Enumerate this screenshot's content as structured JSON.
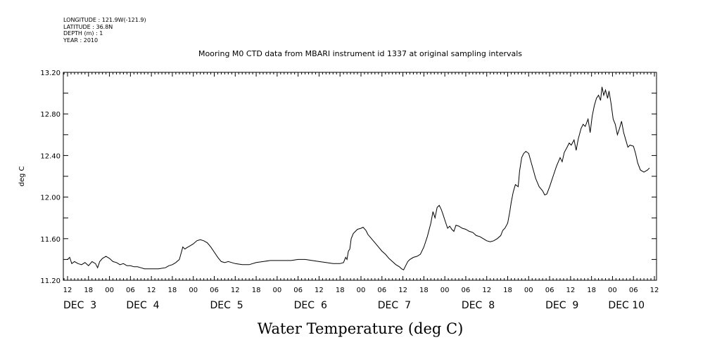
{
  "header": {
    "meta_lines": [
      "LONGITUDE : 121.9W(-121.9)",
      "LATITUDE : 36.8N",
      "DEPTH (m) : 1",
      "YEAR : 2010"
    ]
  },
  "chart_data": {
    "type": "line",
    "title": "Mooring M0 CTD data from MBARI instrument id 1337 at original sampling intervals",
    "xlabel": "Water Temperature (deg C)",
    "ylabel": "deg C",
    "ylim": [
      11.2,
      13.2
    ],
    "yticks": [
      11.2,
      11.6,
      12.0,
      12.4,
      12.8,
      13.2
    ],
    "ytick_labels": [
      "11.20",
      "11.60",
      "12.00",
      "12.40",
      "12.80",
      "13.20"
    ],
    "xlim_hours": [
      0,
      168
    ],
    "xticks": [
      {
        "hour": 0,
        "label": "12"
      },
      {
        "hour": 6,
        "label": "18"
      },
      {
        "hour": 12,
        "label": "00"
      },
      {
        "hour": 18,
        "label": "06"
      },
      {
        "hour": 24,
        "label": "12"
      },
      {
        "hour": 30,
        "label": "18"
      },
      {
        "hour": 36,
        "label": "00"
      },
      {
        "hour": 42,
        "label": "06"
      },
      {
        "hour": 48,
        "label": "12"
      },
      {
        "hour": 54,
        "label": "18"
      },
      {
        "hour": 60,
        "label": "00"
      },
      {
        "hour": 66,
        "label": "06"
      },
      {
        "hour": 72,
        "label": "12"
      },
      {
        "hour": 78,
        "label": "18"
      },
      {
        "hour": 84,
        "label": "00"
      },
      {
        "hour": 90,
        "label": "06"
      },
      {
        "hour": 96,
        "label": "12"
      },
      {
        "hour": 102,
        "label": "18"
      },
      {
        "hour": 108,
        "label": "00"
      },
      {
        "hour": 114,
        "label": "06"
      },
      {
        "hour": 120,
        "label": "12"
      },
      {
        "hour": 126,
        "label": "18"
      },
      {
        "hour": 132,
        "label": "00"
      },
      {
        "hour": 138,
        "label": "06"
      },
      {
        "hour": 144,
        "label": "12"
      },
      {
        "hour": 150,
        "label": "18"
      },
      {
        "hour": 156,
        "label": "00"
      },
      {
        "hour": 162,
        "label": "06"
      },
      {
        "hour": 168,
        "label": "12"
      }
    ],
    "day_labels": [
      {
        "hour": 0,
        "label": "DEC  3"
      },
      {
        "hour": 18,
        "label": "DEC  4"
      },
      {
        "hour": 42,
        "label": "DEC  5"
      },
      {
        "hour": 66,
        "label": "DEC  6"
      },
      {
        "hour": 90,
        "label": "DEC  7"
      },
      {
        "hour": 114,
        "label": "DEC  8"
      },
      {
        "hour": 138,
        "label": "DEC  9"
      },
      {
        "hour": 156,
        "label": "DEC 10"
      }
    ],
    "grid": false,
    "series": [
      {
        "points": [
          [
            0,
            11.4
          ],
          [
            0.6,
            11.42
          ],
          [
            1.2,
            11.36
          ],
          [
            2,
            11.38
          ],
          [
            3,
            11.36
          ],
          [
            4,
            11.35
          ],
          [
            5,
            11.37
          ],
          [
            6,
            11.34
          ],
          [
            7,
            11.38
          ],
          [
            8,
            11.36
          ],
          [
            8.6,
            11.32
          ],
          [
            9.2,
            11.38
          ],
          [
            10,
            11.41
          ],
          [
            11,
            11.43
          ],
          [
            12,
            11.41
          ],
          [
            13,
            11.38
          ],
          [
            14,
            11.37
          ],
          [
            15,
            11.35
          ],
          [
            16,
            11.36
          ],
          [
            17,
            11.34
          ],
          [
            18,
            11.34
          ],
          [
            19,
            11.33
          ],
          [
            20,
            11.33
          ],
          [
            21,
            11.32
          ],
          [
            22,
            11.31
          ],
          [
            23,
            11.31
          ],
          [
            24,
            11.31
          ],
          [
            26,
            11.31
          ],
          [
            28,
            11.32
          ],
          [
            29,
            11.34
          ],
          [
            30,
            11.35
          ],
          [
            31,
            11.37
          ],
          [
            32,
            11.4
          ],
          [
            32.6,
            11.47
          ],
          [
            33,
            11.52
          ],
          [
            33.6,
            11.5
          ],
          [
            34,
            11.51
          ],
          [
            35,
            11.53
          ],
          [
            36,
            11.55
          ],
          [
            37,
            11.58
          ],
          [
            38,
            11.59
          ],
          [
            39,
            11.58
          ],
          [
            40,
            11.56
          ],
          [
            41,
            11.52
          ],
          [
            42,
            11.47
          ],
          [
            43,
            11.42
          ],
          [
            44,
            11.38
          ],
          [
            45,
            11.37
          ],
          [
            46,
            11.38
          ],
          [
            47,
            11.37
          ],
          [
            48,
            11.36
          ],
          [
            50,
            11.35
          ],
          [
            52,
            11.35
          ],
          [
            54,
            11.37
          ],
          [
            56,
            11.38
          ],
          [
            58,
            11.39
          ],
          [
            60,
            11.39
          ],
          [
            62,
            11.39
          ],
          [
            64,
            11.39
          ],
          [
            66,
            11.4
          ],
          [
            68,
            11.4
          ],
          [
            70,
            11.39
          ],
          [
            72,
            11.38
          ],
          [
            74,
            11.37
          ],
          [
            76,
            11.36
          ],
          [
            78,
            11.36
          ],
          [
            79,
            11.37
          ],
          [
            79.6,
            11.42
          ],
          [
            80,
            11.4
          ],
          [
            80.4,
            11.48
          ],
          [
            80.8,
            11.5
          ],
          [
            81.2,
            11.6
          ],
          [
            81.8,
            11.65
          ],
          [
            82.4,
            11.67
          ],
          [
            83,
            11.69
          ],
          [
            84,
            11.7
          ],
          [
            84.6,
            11.71
          ],
          [
            85.4,
            11.68
          ],
          [
            86,
            11.64
          ],
          [
            87,
            11.6
          ],
          [
            88,
            11.56
          ],
          [
            89,
            11.52
          ],
          [
            90,
            11.48
          ],
          [
            91,
            11.45
          ],
          [
            92,
            11.41
          ],
          [
            93,
            11.38
          ],
          [
            94,
            11.35
          ],
          [
            95,
            11.33
          ],
          [
            95.6,
            11.31
          ],
          [
            96.2,
            11.3
          ],
          [
            96.8,
            11.34
          ],
          [
            97.4,
            11.38
          ],
          [
            98,
            11.4
          ],
          [
            99,
            11.42
          ],
          [
            100,
            11.43
          ],
          [
            101,
            11.45
          ],
          [
            102,
            11.52
          ],
          [
            103,
            11.62
          ],
          [
            104,
            11.75
          ],
          [
            104.6,
            11.86
          ],
          [
            105.2,
            11.8
          ],
          [
            105.8,
            11.9
          ],
          [
            106.4,
            11.92
          ],
          [
            107,
            11.88
          ],
          [
            107.6,
            11.82
          ],
          [
            108.2,
            11.76
          ],
          [
            108.8,
            11.7
          ],
          [
            109.4,
            11.72
          ],
          [
            110,
            11.69
          ],
          [
            110.6,
            11.67
          ],
          [
            111.2,
            11.73
          ],
          [
            112,
            11.72
          ],
          [
            113,
            11.7
          ],
          [
            114,
            11.69
          ],
          [
            115,
            11.67
          ],
          [
            116,
            11.66
          ],
          [
            117,
            11.63
          ],
          [
            118,
            11.62
          ],
          [
            119,
            11.6
          ],
          [
            120,
            11.58
          ],
          [
            121,
            11.57
          ],
          [
            122,
            11.58
          ],
          [
            123,
            11.6
          ],
          [
            124,
            11.63
          ],
          [
            124.6,
            11.68
          ],
          [
            125.2,
            11.7
          ],
          [
            126,
            11.75
          ],
          [
            126.6,
            11.86
          ],
          [
            127,
            11.95
          ],
          [
            127.6,
            12.05
          ],
          [
            128.2,
            12.12
          ],
          [
            129,
            12.1
          ],
          [
            129.4,
            12.25
          ],
          [
            130,
            12.38
          ],
          [
            130.6,
            12.42
          ],
          [
            131.2,
            12.44
          ],
          [
            132,
            12.42
          ],
          [
            133,
            12.3
          ],
          [
            134,
            12.18
          ],
          [
            135,
            12.1
          ],
          [
            136,
            12.06
          ],
          [
            136.6,
            12.02
          ],
          [
            137.2,
            12.03
          ],
          [
            138,
            12.1
          ],
          [
            139,
            12.2
          ],
          [
            140,
            12.3
          ],
          [
            141,
            12.38
          ],
          [
            141.6,
            12.34
          ],
          [
            142.2,
            12.43
          ],
          [
            143,
            12.48
          ],
          [
            143.6,
            12.52
          ],
          [
            144.2,
            12.5
          ],
          [
            145,
            12.55
          ],
          [
            145.6,
            12.45
          ],
          [
            146.2,
            12.56
          ],
          [
            147,
            12.66
          ],
          [
            147.6,
            12.7
          ],
          [
            148.2,
            12.68
          ],
          [
            149,
            12.75
          ],
          [
            149.6,
            12.62
          ],
          [
            150.2,
            12.78
          ],
          [
            150.8,
            12.88
          ],
          [
            151.4,
            12.95
          ],
          [
            152,
            12.98
          ],
          [
            152.6,
            12.93
          ],
          [
            153,
            13.06
          ],
          [
            153.5,
            12.98
          ],
          [
            154,
            13.03
          ],
          [
            154.6,
            12.95
          ],
          [
            155,
            13.02
          ],
          [
            155.6,
            12.9
          ],
          [
            156.2,
            12.75
          ],
          [
            156.8,
            12.7
          ],
          [
            157.4,
            12.6
          ],
          [
            158,
            12.66
          ],
          [
            158.6,
            12.73
          ],
          [
            159.2,
            12.62
          ],
          [
            159.8,
            12.55
          ],
          [
            160.4,
            12.48
          ],
          [
            161,
            12.5
          ],
          [
            162,
            12.49
          ],
          [
            162.6,
            12.42
          ],
          [
            163.2,
            12.33
          ],
          [
            164,
            12.26
          ],
          [
            165,
            12.24
          ],
          [
            166,
            12.26
          ],
          [
            166.6,
            12.28
          ]
        ]
      }
    ]
  }
}
